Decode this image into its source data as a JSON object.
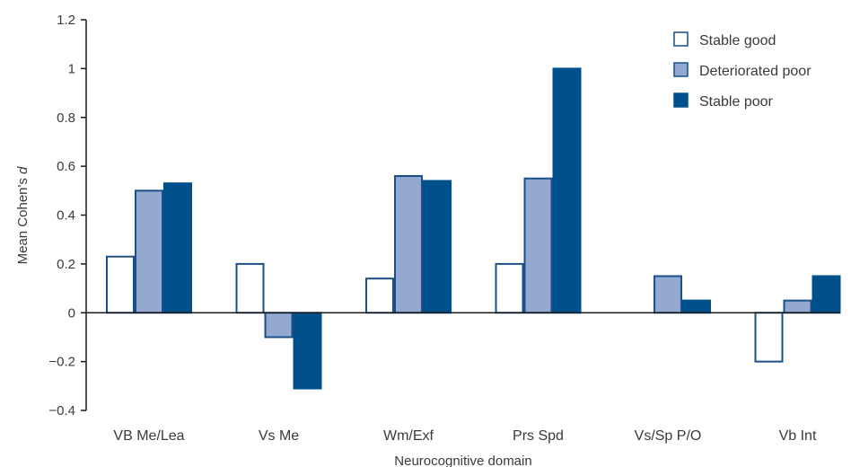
{
  "chart_data": {
    "type": "bar",
    "xlabel": "Neurocognitive domain",
    "ylabel_prefix": "Mean Cohen's ",
    "ylabel_italic": "d",
    "ylim": [
      -0.4,
      1.2
    ],
    "yticks": [
      -0.4,
      -0.2,
      0,
      0.2,
      0.4,
      0.6,
      0.8,
      1,
      1.2
    ],
    "ytick_labels": [
      "−0.4",
      "−0.2",
      "0",
      "0.2",
      "0.4",
      "0.6",
      "0.8",
      "1",
      "1.2"
    ],
    "categories": [
      "VB Me/Lea",
      "Vs Me",
      "Wm/Exf",
      "Prs Spd",
      "Vs/Sp P/O",
      "Vb Int"
    ],
    "series": [
      {
        "name": "Stable good",
        "values": [
          0.23,
          0.2,
          0.14,
          0.2,
          0,
          -0.2
        ]
      },
      {
        "name": "Deteriorated poor",
        "values": [
          0.5,
          -0.1,
          0.56,
          0.55,
          0.15,
          0.05
        ]
      },
      {
        "name": "Stable poor",
        "values": [
          0.53,
          -0.31,
          0.54,
          1.0,
          0.05,
          0.15
        ]
      }
    ],
    "legend_position": "top-right",
    "grid": false
  },
  "colors": {
    "stable_good_fill": "#ffffff",
    "stable_good_stroke": "#1a4f8a",
    "deteriorated_poor_fill": "#94a9cf",
    "deteriorated_poor_stroke": "#1a4f8a",
    "stable_poor_fill": "#00508c",
    "stable_poor_stroke": "#00508c",
    "axis": "#1a1a1a",
    "text": "#3a3a3a"
  }
}
